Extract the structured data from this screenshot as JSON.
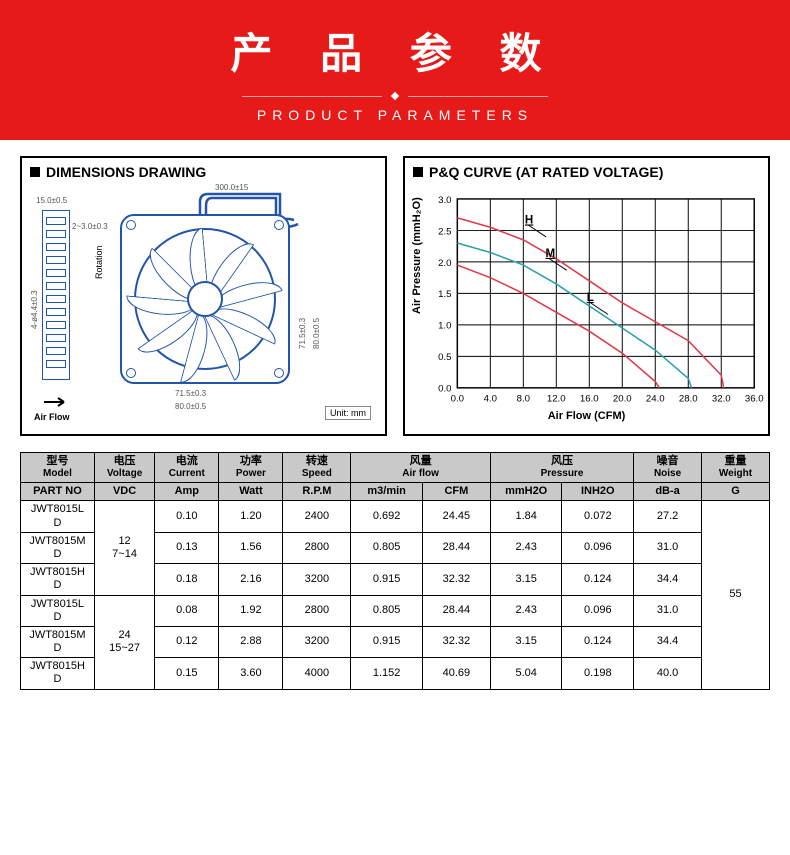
{
  "header": {
    "title_cn": "产 品 参 数",
    "subtitle_en": "PRODUCT PARAMETERS",
    "bg_color": "#e61a18",
    "text_color": "#ffffff"
  },
  "dimensions": {
    "title": "DIMENSIONS DRAWING",
    "unit_label": "Unit: mm",
    "rotation_label": "Rotation",
    "airflow_label": "Air Flow",
    "labels": {
      "wire_len": "300.0±15",
      "thickness": "15.0±0.5",
      "wire_gauge": "2~3.0±0.3",
      "mount_holes": "4-ø4.4±0.3",
      "inner_w": "71.5±0.3",
      "outer_w": "80.0±0.5",
      "inner_h": "71.5±0.3",
      "outer_h": "80.0±0.5"
    },
    "frame_color": "#2255aa"
  },
  "chart": {
    "title": "P&Q  CURVE  (AT  RATED  VOLTAGE)",
    "ylabel": "Air Pressure (mmH₂O)",
    "xlabel": "Air Flow (CFM)",
    "xlim": [
      0,
      36
    ],
    "ylim": [
      0,
      3.0
    ],
    "xticks": [
      0.0,
      4.0,
      8.0,
      12.0,
      16.0,
      20.0,
      24.0,
      28.0,
      32.0,
      36.0
    ],
    "yticks": [
      0.0,
      0.5,
      1.0,
      1.5,
      2.0,
      2.5,
      3.0
    ],
    "grid_color": "#000000",
    "background_color": "#ffffff",
    "series": {
      "H": {
        "label": "H",
        "color": "#e03a4a",
        "points": [
          [
            0,
            2.7
          ],
          [
            4,
            2.55
          ],
          [
            8,
            2.35
          ],
          [
            12,
            2.05
          ],
          [
            16,
            1.7
          ],
          [
            20,
            1.35
          ],
          [
            24,
            1.05
          ],
          [
            28,
            0.75
          ],
          [
            32,
            0.2
          ],
          [
            32.3,
            0
          ]
        ],
        "label_pos": [
          11,
          2.58
        ]
      },
      "M": {
        "label": "M",
        "color": "#2aa0a8",
        "points": [
          [
            0,
            2.3
          ],
          [
            4,
            2.15
          ],
          [
            8,
            1.95
          ],
          [
            12,
            1.65
          ],
          [
            16,
            1.3
          ],
          [
            20,
            0.95
          ],
          [
            24,
            0.6
          ],
          [
            28,
            0.15
          ],
          [
            28.4,
            0
          ]
        ],
        "label_pos": [
          13.5,
          2.05
        ]
      },
      "L": {
        "label": "L",
        "color": "#e03a4a",
        "points": [
          [
            0,
            1.95
          ],
          [
            4,
            1.75
          ],
          [
            8,
            1.5
          ],
          [
            12,
            1.2
          ],
          [
            16,
            0.9
          ],
          [
            20,
            0.55
          ],
          [
            24,
            0.1
          ],
          [
            24.5,
            0
          ]
        ],
        "label_pos": [
          18.5,
          1.35
        ]
      }
    }
  },
  "table": {
    "headers": [
      {
        "cn": "型号",
        "en": "Model"
      },
      {
        "cn": "电压",
        "en": "Voltage"
      },
      {
        "cn": "电流",
        "en": "Current"
      },
      {
        "cn": "功率",
        "en": "Power"
      },
      {
        "cn": "转速",
        "en": "Speed"
      },
      {
        "cn": "风量",
        "en": "Air flow"
      },
      {
        "cn": "风压",
        "en": "Pressure"
      },
      {
        "cn": "噪音",
        "en": "Noise"
      },
      {
        "cn": "重量",
        "en": "Weight"
      }
    ],
    "subheaders": [
      "PART NO",
      "VDC",
      "Amp",
      "Watt",
      "R.P.M",
      "m3/min",
      "CFM",
      "mmH2O",
      "INH2O",
      "dB-a",
      "G"
    ],
    "voltage_groups": [
      {
        "v": "12",
        "range": "7~14"
      },
      {
        "v": "24",
        "range": "15~27"
      }
    ],
    "weight": "55",
    "rows": [
      {
        "part": "JWT8015LD",
        "amp": "0.10",
        "watt": "1.20",
        "rpm": "2400",
        "m3min": "0.692",
        "cfm": "24.45",
        "mmh2o": "1.84",
        "inh2o": "0.072",
        "db": "27.2"
      },
      {
        "part": "JWT8015MD",
        "amp": "0.13",
        "watt": "1.56",
        "rpm": "2800",
        "m3min": "0.805",
        "cfm": "28.44",
        "mmh2o": "2.43",
        "inh2o": "0.096",
        "db": "31.0"
      },
      {
        "part": "JWT8015HD",
        "amp": "0.18",
        "watt": "2.16",
        "rpm": "3200",
        "m3min": "0.915",
        "cfm": "32.32",
        "mmh2o": "3.15",
        "inh2o": "0.124",
        "db": "34.4"
      },
      {
        "part": "JWT8015LD",
        "amp": "0.08",
        "watt": "1.92",
        "rpm": "2800",
        "m3min": "0.805",
        "cfm": "28.44",
        "mmh2o": "2.43",
        "inh2o": "0.096",
        "db": "31.0"
      },
      {
        "part": "JWT8015MD",
        "amp": "0.12",
        "watt": "2.88",
        "rpm": "3200",
        "m3min": "0.915",
        "cfm": "32.32",
        "mmh2o": "3.15",
        "inh2o": "0.124",
        "db": "34.4"
      },
      {
        "part": "JWT8015HD",
        "amp": "0.15",
        "watt": "3.60",
        "rpm": "4000",
        "m3min": "1.152",
        "cfm": "40.69",
        "mmh2o": "5.04",
        "inh2o": "0.198",
        "db": "40.0"
      }
    ]
  }
}
